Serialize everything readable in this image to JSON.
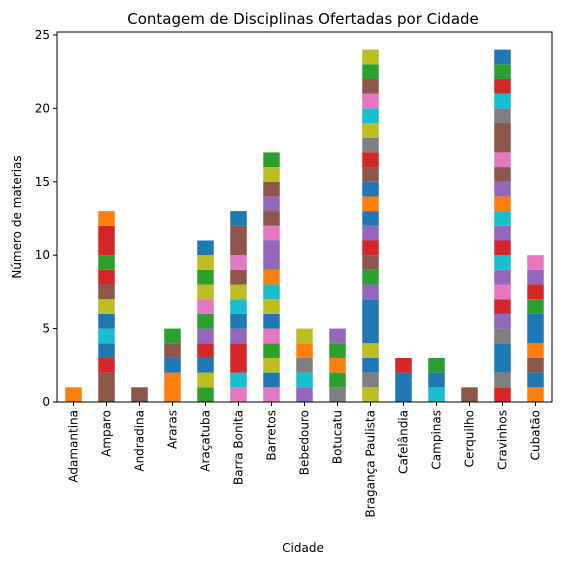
{
  "chart_data": {
    "type": "bar",
    "stacked": true,
    "title": "Contagem de Disciplinas Ofertadas por Cidade",
    "xlabel": "Cidade",
    "ylabel": "Número de materias",
    "ylim": [
      0,
      25.2
    ],
    "yticks": [
      0,
      5,
      10,
      15,
      20,
      25
    ],
    "grid": false,
    "legend": "none",
    "categories": [
      "Adamantina",
      "Amparo",
      "Andradina",
      "Araras",
      "Araçatuba",
      "Barra Bonita",
      "Barretos",
      "Bebedouro",
      "Botucatu",
      "Bragança Paulista",
      "Cafelândia",
      "Campinas",
      "Cerquilho",
      "Cravinhos",
      "Cubatão"
    ],
    "palette": [
      "#1f77b4",
      "#ff7f0e",
      "#2ca02c",
      "#d62728",
      "#9467bd",
      "#8c564b",
      "#e377c2",
      "#7f7f7f",
      "#bcbd22",
      "#17becf"
    ],
    "stacks": [
      [
        [
          1,
          1
        ]
      ],
      [
        [
          5,
          2
        ],
        [
          3,
          1
        ],
        [
          0,
          1
        ],
        [
          9,
          1
        ],
        [
          0,
          1
        ],
        [
          8,
          1
        ],
        [
          5,
          1
        ],
        [
          3,
          1
        ],
        [
          2,
          1
        ],
        [
          3,
          2
        ],
        [
          1,
          1
        ]
      ],
      [
        [
          5,
          1
        ]
      ],
      [
        [
          1,
          2
        ],
        [
          0,
          1
        ],
        [
          5,
          1
        ],
        [
          2,
          1
        ]
      ],
      [
        [
          2,
          1
        ],
        [
          8,
          1
        ],
        [
          0,
          1
        ],
        [
          3,
          1
        ],
        [
          4,
          1
        ],
        [
          2,
          1
        ],
        [
          6,
          1
        ],
        [
          8,
          1
        ],
        [
          2,
          1
        ],
        [
          8,
          1
        ],
        [
          0,
          1
        ]
      ],
      [
        [
          6,
          1
        ],
        [
          9,
          1
        ],
        [
          3,
          2
        ],
        [
          4,
          1
        ],
        [
          0,
          1
        ],
        [
          9,
          1
        ],
        [
          8,
          1
        ],
        [
          5,
          1
        ],
        [
          6,
          1
        ],
        [
          5,
          2
        ],
        [
          0,
          1
        ]
      ],
      [
        [
          6,
          1
        ],
        [
          0,
          1
        ],
        [
          8,
          1
        ],
        [
          2,
          1
        ],
        [
          6,
          1
        ],
        [
          0,
          1
        ],
        [
          8,
          1
        ],
        [
          9,
          1
        ],
        [
          1,
          1
        ],
        [
          4,
          2
        ],
        [
          6,
          1
        ],
        [
          5,
          1
        ],
        [
          4,
          1
        ],
        [
          5,
          1
        ],
        [
          8,
          1
        ],
        [
          2,
          1
        ]
      ],
      [
        [
          4,
          1
        ],
        [
          9,
          1
        ],
        [
          7,
          1
        ],
        [
          1,
          1
        ],
        [
          8,
          1
        ]
      ],
      [
        [
          7,
          1
        ],
        [
          2,
          1
        ],
        [
          1,
          1
        ],
        [
          2,
          1
        ],
        [
          4,
          1
        ]
      ],
      [
        [
          8,
          1
        ],
        [
          7,
          1
        ],
        [
          0,
          1
        ],
        [
          8,
          1
        ],
        [
          0,
          3
        ],
        [
          4,
          1
        ],
        [
          2,
          1
        ],
        [
          5,
          1
        ],
        [
          3,
          1
        ],
        [
          4,
          1
        ],
        [
          0,
          1
        ],
        [
          1,
          1
        ],
        [
          0,
          1
        ],
        [
          5,
          1
        ],
        [
          3,
          1
        ],
        [
          7,
          1
        ],
        [
          8,
          1
        ],
        [
          9,
          1
        ],
        [
          6,
          1
        ],
        [
          5,
          1
        ],
        [
          2,
          1
        ],
        [
          8,
          1
        ]
      ],
      [
        [
          0,
          2
        ],
        [
          3,
          1
        ]
      ],
      [
        [
          9,
          1
        ],
        [
          0,
          1
        ],
        [
          2,
          1
        ]
      ],
      [
        [
          5,
          1
        ]
      ],
      [
        [
          3,
          1
        ],
        [
          7,
          1
        ],
        [
          0,
          2
        ],
        [
          7,
          1
        ],
        [
          4,
          1
        ],
        [
          3,
          1
        ],
        [
          6,
          1
        ],
        [
          4,
          1
        ],
        [
          9,
          1
        ],
        [
          3,
          1
        ],
        [
          4,
          1
        ],
        [
          9,
          1
        ],
        [
          1,
          1
        ],
        [
          4,
          1
        ],
        [
          5,
          1
        ],
        [
          6,
          1
        ],
        [
          5,
          2
        ],
        [
          7,
          1
        ],
        [
          9,
          1
        ],
        [
          3,
          1
        ],
        [
          2,
          1
        ],
        [
          0,
          1
        ]
      ],
      [
        [
          1,
          1
        ],
        [
          0,
          1
        ],
        [
          5,
          1
        ],
        [
          1,
          1
        ],
        [
          0,
          2
        ],
        [
          2,
          1
        ],
        [
          3,
          1
        ],
        [
          4,
          1
        ],
        [
          6,
          1
        ]
      ]
    ]
  }
}
